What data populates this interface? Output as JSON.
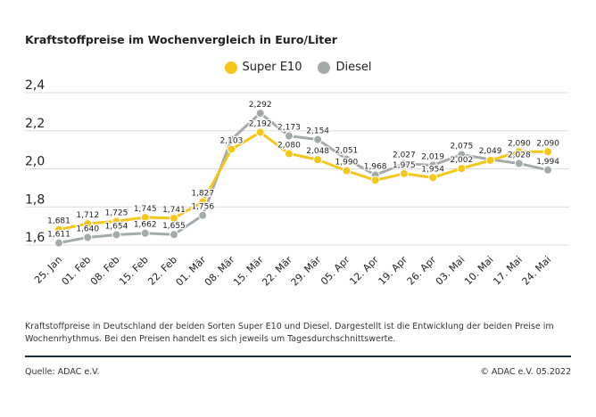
{
  "chart_data": {
    "type": "line",
    "title": "Kraftstoffpreise im Wochenvergleich in Euro/Liter",
    "categories": [
      "25. Jan",
      "01. Feb",
      "08. Feb",
      "15. Feb",
      "22. Feb",
      "01. Mär",
      "08. Mär",
      "15. Mär",
      "22. Mär",
      "29. Mär",
      "05. Apr",
      "12. Apr",
      "19. Apr",
      "26. Apr",
      "03. Mai",
      "10. Mai",
      "17. Mai",
      "24. Mai"
    ],
    "series": [
      {
        "name": "Super E10",
        "color": "#f5c518",
        "values": [
          1.681,
          1.712,
          1.725,
          1.745,
          1.741,
          1.827,
          2.103,
          2.192,
          2.08,
          2.048,
          1.99,
          1.94,
          1.975,
          1.954,
          2.002,
          2.045,
          2.09,
          2.09
        ],
        "labels": [
          "1,681",
          "1,712",
          "1,725",
          "1,745",
          "1,741",
          "1,827",
          "2,103",
          "2,192",
          "2,080",
          "2,048",
          "1,990",
          "",
          "1,975",
          "1,954",
          "2,002",
          "",
          "2,090",
          "2,090"
        ]
      },
      {
        "name": "Diesel",
        "color": "#a3abaa",
        "values": [
          1.611,
          1.64,
          1.654,
          1.662,
          1.655,
          1.756,
          2.155,
          2.292,
          2.173,
          2.154,
          2.051,
          1.968,
          2.027,
          2.019,
          2.075,
          2.049,
          2.028,
          1.994
        ],
        "labels": [
          "1,611",
          "1,640",
          "1,654",
          "1,662",
          "1,655",
          "1,756",
          "",
          "2,292",
          "2,173",
          "2,154",
          "2,051",
          "1,968",
          "2,027",
          "2,019",
          "2,075",
          "2,049",
          "2,028",
          "1,994"
        ]
      }
    ],
    "yticks": [
      "1,6",
      "1,8",
      "2,0",
      "2,2",
      "2,4"
    ],
    "ytick_values": [
      1.6,
      1.8,
      2.0,
      2.2,
      2.4
    ],
    "ylim": [
      1.6,
      2.4
    ],
    "grid": true,
    "legend_placement": "top-center"
  },
  "description": "Kraftstoffpreise in Deutschland der beiden Sorten Super E10 und Diesel. Dargestellt ist die Entwicklung der beiden Preise im Wochenrhythmus. Bei den Preisen handelt es sich jeweils um Tagesdurchschnittswerte.",
  "source": "Quelle: ADAC e.V.",
  "copyright": "© ADAC e.V. 05.2022"
}
